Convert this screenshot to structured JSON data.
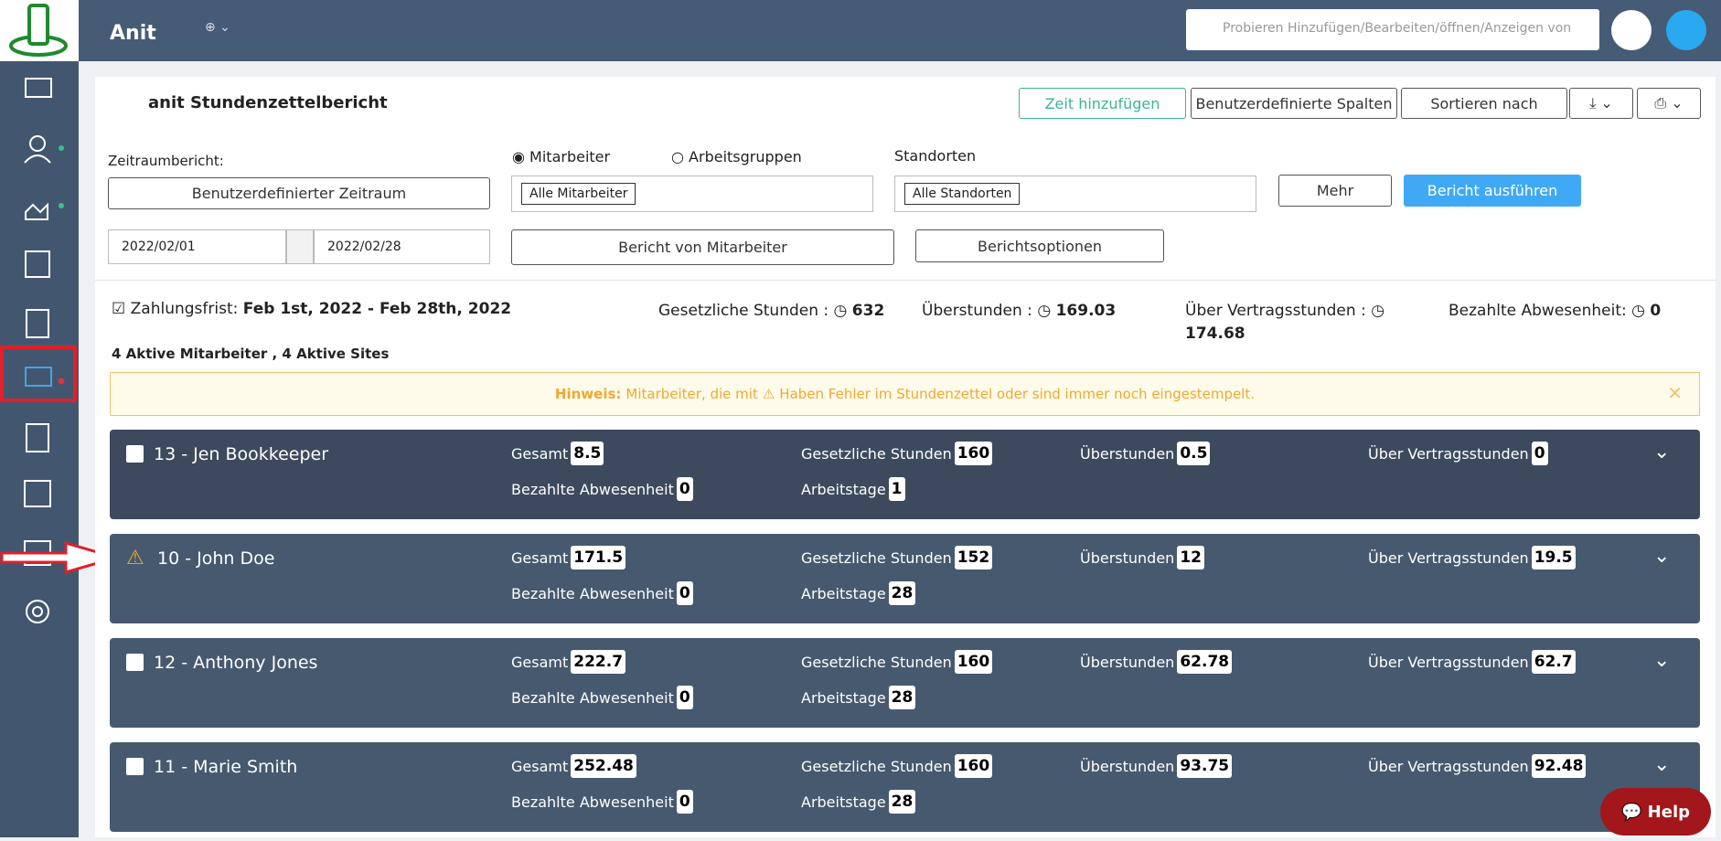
{
  "header": {
    "brand": "Anit",
    "search_placeholder": "Probieren Hinzufügen/Bearbeiten/öffnen/Anzeigen von",
    "help": "Help"
  },
  "report": {
    "title": "anit Stundenzettelbericht",
    "add_time": "Zeit hinzufügen",
    "custom_columns": "Benutzerdefinierte Spalten",
    "sort_by": "Sortieren nach"
  },
  "filters": {
    "period_label": "Zeitraumbericht:",
    "period": "Benutzerdefinierter Zeitraum",
    "start": "2022/02/01",
    "end": "2022/02/28",
    "radio_employees": "Mitarbeiter",
    "radio_groups": "Arbeitsgruppen",
    "employees_tag": "Alle Mitarbeiter",
    "report_by": "Bericht von Mitarbeiter",
    "locations_label": "Standorten",
    "locations_tag": "Alle Standorten",
    "options": "Berichtsoptionen",
    "more": "Mehr",
    "run": "Bericht ausführen"
  },
  "summary": {
    "period_label": "Zahlungsfrist:",
    "period": "Feb 1st, 2022 - Feb 28th, 2022",
    "stats": [
      {
        "label": "Gesetzliche Stunden :",
        "value": 632
      },
      {
        "label": "Überstunden :",
        "value": 169.03
      },
      {
        "label": "Über Vertragsstunden :",
        "value": 174.68
      },
      {
        "label": "Bezahlte Abwesenheit:",
        "value": 0
      }
    ],
    "active": "4 Aktive Mitarbeiter , 4 Aktive Sites"
  },
  "notice": {
    "bold": "Hinweis:",
    "text_before": "Mitarbeiter, die mit",
    "text_after": "Haben Fehler im Stundenzettel oder sind immer noch eingestempelt."
  },
  "field_labels": [
    "Gesamt",
    "Gesetzliche Stunden",
    "Überstunden",
    "Über Vertragsstunden",
    "Bezahlte Abwesenheit",
    "Arbeitstage"
  ],
  "employees": [
    {
      "name": "13 - Jen Bookkeeper",
      "warning": false,
      "values": [
        8.5,
        160,
        0.5,
        0,
        0,
        1
      ]
    },
    {
      "name": "10 - John Doe",
      "warning": true,
      "values": [
        171.5,
        152,
        12,
        19.5,
        0,
        28
      ]
    },
    {
      "name": "12 - Anthony Jones",
      "warning": false,
      "values": [
        222.7,
        160,
        62.78,
        62.7,
        0,
        28
      ]
    },
    {
      "name": "11 - Marie Smith",
      "warning": false,
      "values": [
        252.48,
        160,
        93.75,
        92.48,
        0,
        28
      ]
    }
  ]
}
